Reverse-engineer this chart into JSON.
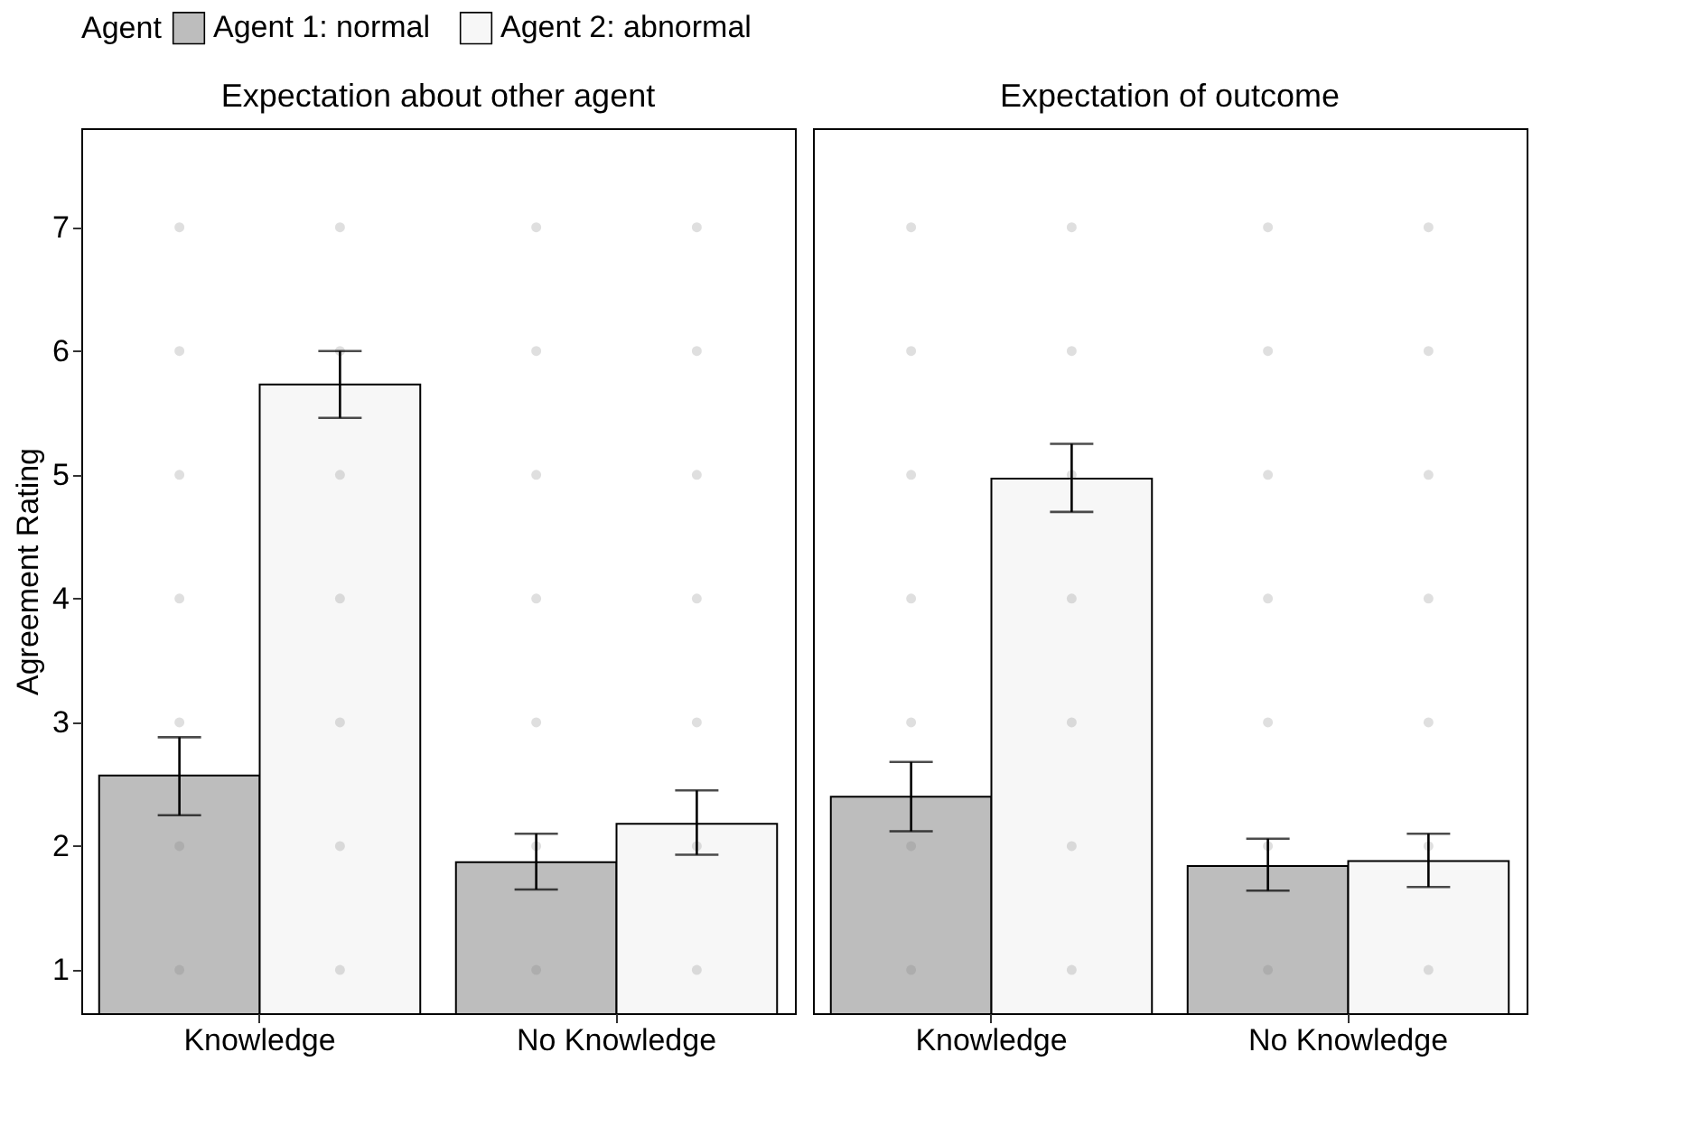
{
  "chart_data": [
    {
      "type": "bar",
      "title": "Expectation about other agent",
      "ylabel": "Agreement Rating",
      "legend_title": "Agent",
      "legend": "top",
      "categories": [
        "Knowledge",
        "No Knowledge"
      ],
      "ylim": [
        0.65,
        7.8
      ],
      "yticks": [
        1,
        2,
        3,
        4,
        5,
        6,
        7
      ],
      "series": [
        {
          "name": "Agent 1: normal",
          "color": "#bdbdbd",
          "values": [
            2.57,
            1.87
          ],
          "errors": [
            [
              2.25,
              2.88
            ],
            [
              1.65,
              2.1
            ]
          ]
        },
        {
          "name": "Agent 2: abnormal",
          "color": "#f7f7f7",
          "values": [
            5.73,
            2.18
          ],
          "errors": [
            [
              5.46,
              6.0
            ],
            [
              1.93,
              2.45
            ]
          ]
        },
        {
          "type": "scatter",
          "color": "#7f7f7f",
          "x": [
            "Knowledge",
            "Knowledge",
            "Knowledge",
            "Knowledge",
            "Knowledge",
            "Knowledge",
            "Knowledge",
            "No Knowledge",
            "No Knowledge",
            "No Knowledge",
            "No Knowledge",
            "No Knowledge",
            "No Knowledge",
            "No Knowledge"
          ],
          "values": [
            1,
            2,
            3,
            4,
            5,
            6,
            7,
            1,
            2,
            3,
            4,
            5,
            6,
            7
          ]
        },
        {
          "type": "scatter",
          "color": "#7f7f7f",
          "x": [
            "Knowledge",
            "Knowledge",
            "Knowledge",
            "Knowledge",
            "Knowledge",
            "Knowledge",
            "Knowledge",
            "No Knowledge",
            "No Knowledge",
            "No Knowledge",
            "No Knowledge",
            "No Knowledge",
            "No Knowledge",
            "No Knowledge"
          ],
          "values": [
            1,
            2,
            3,
            4,
            5,
            6,
            7,
            1,
            2,
            3,
            4,
            5,
            6,
            7
          ]
        }
      ]
    },
    {
      "type": "bar",
      "title": "Expectation of outcome",
      "tick_labels": "x",
      "categories": [
        "Knowledge",
        "No Knowledge"
      ],
      "ylim": [
        0.65,
        7.8
      ],
      "yticks": [
        1,
        2,
        3,
        4,
        5,
        6,
        7
      ],
      "series": [
        {
          "name": "Agent 1: normal",
          "color": "#bdbdbd",
          "values": [
            2.4,
            1.84
          ],
          "errors": [
            [
              2.12,
              2.68
            ],
            [
              1.64,
              2.06
            ]
          ]
        },
        {
          "name": "Agent 2: abnormal",
          "color": "#f7f7f7",
          "values": [
            4.97,
            1.88
          ],
          "errors": [
            [
              4.7,
              5.25
            ],
            [
              1.67,
              2.1
            ]
          ]
        },
        {
          "type": "scatter",
          "color": "#7f7f7f",
          "x": [
            "Knowledge",
            "Knowledge",
            "Knowledge",
            "Knowledge",
            "Knowledge",
            "Knowledge",
            "Knowledge",
            "No Knowledge",
            "No Knowledge",
            "No Knowledge",
            "No Knowledge",
            "No Knowledge",
            "No Knowledge",
            "No Knowledge"
          ],
          "values": [
            1,
            2,
            3,
            4,
            5,
            6,
            7,
            1,
            2,
            3,
            4,
            5,
            6,
            7
          ]
        },
        {
          "type": "scatter",
          "color": "#7f7f7f",
          "x": [
            "Knowledge",
            "Knowledge",
            "Knowledge",
            "Knowledge",
            "Knowledge",
            "Knowledge",
            "Knowledge",
            "No Knowledge",
            "No Knowledge",
            "No Knowledge",
            "No Knowledge",
            "No Knowledge",
            "No Knowledge",
            "No Knowledge"
          ],
          "values": [
            1,
            2,
            3,
            4,
            5,
            6,
            7,
            1,
            2,
            3,
            4,
            5,
            6,
            7
          ]
        }
      ]
    }
  ]
}
